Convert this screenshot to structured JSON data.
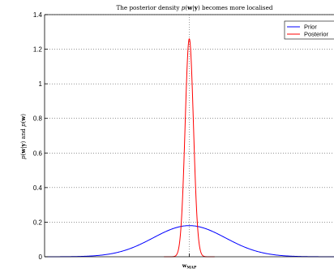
{
  "chart_data": {
    "type": "line",
    "title": "The posterior density p(w|y) becomes more localised",
    "ylabel": "p(w|y) and p(w)",
    "xlabel": "",
    "x_tick_labels": [
      "w_MAP"
    ],
    "ylim": [
      0,
      1.4
    ],
    "y_ticks": [
      0,
      0.2,
      0.4,
      0.6,
      0.8,
      1,
      1.2,
      1.4
    ],
    "y_tick_labels": [
      "0",
      "0.2",
      "0.4",
      "0.6",
      "0.8",
      "1",
      "1.2",
      "1.4"
    ],
    "xlim": [
      -4,
      4
    ],
    "grid": true,
    "legend_position": "top-right",
    "reference_line_x": 0,
    "series": [
      {
        "name": "Prior",
        "color": "#0000ff",
        "x": [
          -4,
          -3.5,
          -3,
          -2.5,
          -2,
          -1.5,
          -1,
          -0.5,
          0,
          0.5,
          1,
          1.5,
          2,
          2.5,
          3,
          3.5,
          4
        ],
        "y": [
          0.0003,
          0.0015,
          0.006,
          0.018,
          0.041,
          0.076,
          0.12,
          0.16,
          0.18,
          0.16,
          0.12,
          0.076,
          0.041,
          0.018,
          0.006,
          0.0015,
          0.0003
        ]
      },
      {
        "name": "Posterior",
        "color": "#ff0000",
        "x": [
          -0.5,
          -0.4,
          -0.3,
          -0.25,
          -0.2,
          -0.15,
          -0.1,
          -0.05,
          0,
          0.05,
          0.1,
          0.15,
          0.2,
          0.25,
          0.3,
          0.4,
          0.5
        ],
        "y": [
          0.0,
          0.001,
          0.02,
          0.06,
          0.15,
          0.35,
          0.72,
          1.09,
          1.26,
          1.09,
          0.72,
          0.35,
          0.15,
          0.06,
          0.02,
          0.001,
          0.0
        ]
      }
    ]
  }
}
